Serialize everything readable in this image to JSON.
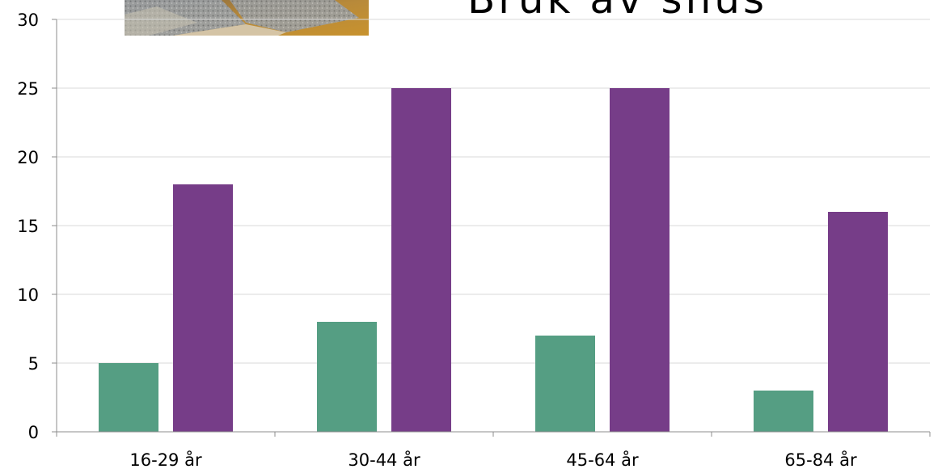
{
  "title": "Bruk av snus",
  "chart_data": {
    "type": "bar",
    "categories": [
      "16-29 år",
      "30-44 år",
      "45-64 år",
      "65-84 år"
    ],
    "series": [
      {
        "values": [
          5,
          8,
          7,
          3
        ],
        "color": "#559e83"
      },
      {
        "values": [
          18,
          25,
          25,
          16
        ],
        "color": "#763d88"
      }
    ],
    "ylim": [
      0,
      30
    ],
    "yticks": [
      0,
      5,
      10,
      15,
      20,
      25,
      30
    ],
    "grid": true,
    "title": "",
    "xlabel": "",
    "ylabel": ""
  }
}
